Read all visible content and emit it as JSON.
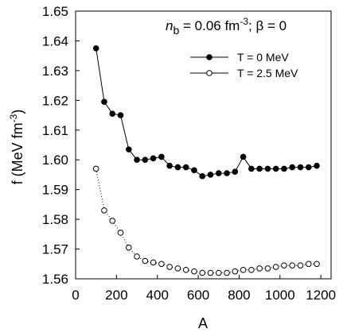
{
  "chart_data": {
    "type": "line",
    "title": "",
    "xlabel": "A",
    "ylabel": "f (MeV fm",
    "ylabel_sup": "-3",
    "ylabel_end": ")",
    "xlim": [
      0,
      1250
    ],
    "ylim": [
      1.56,
      1.65
    ],
    "x_ticks": [
      0,
      200,
      400,
      600,
      800,
      1000,
      1200
    ],
    "x_tick_labels": [
      "0",
      "200",
      "400",
      "600",
      "800",
      "1000",
      "1200"
    ],
    "y_ticks": [
      1.56,
      1.57,
      1.58,
      1.59,
      1.6,
      1.61,
      1.62,
      1.63,
      1.64,
      1.65
    ],
    "y_tick_labels": [
      "1.56",
      "1.57",
      "1.58",
      "1.59",
      "1.60",
      "1.61",
      "1.62",
      "1.63",
      "1.64",
      "1.65"
    ],
    "grid": false,
    "legend_position": "top-right",
    "annotation": {
      "n": "n",
      "n_sub": "b",
      "eq": " = 0.06 fm",
      "sup": "-3",
      "rest": "; β = 0"
    },
    "series": [
      {
        "name": "T = 0 MeV",
        "marker": "filled-circle",
        "line": "solid",
        "x": [
          100,
          140,
          180,
          220,
          260,
          300,
          340,
          380,
          420,
          460,
          500,
          540,
          580,
          620,
          660,
          700,
          740,
          780,
          820,
          860,
          900,
          940,
          980,
          1020,
          1060,
          1100,
          1140,
          1180
        ],
        "y": [
          1.6375,
          1.6195,
          1.6155,
          1.615,
          1.6035,
          1.6,
          1.6,
          1.6005,
          1.601,
          1.598,
          1.5975,
          1.5975,
          1.5965,
          1.5945,
          1.595,
          1.5955,
          1.5955,
          1.596,
          1.601,
          1.597,
          1.597,
          1.597,
          1.597,
          1.597,
          1.5975,
          1.5975,
          1.5975,
          1.598
        ]
      },
      {
        "name": "T = 2.5 MeV",
        "marker": "open-circle",
        "line": "dotted",
        "x": [
          100,
          140,
          180,
          220,
          260,
          300,
          340,
          380,
          420,
          460,
          500,
          540,
          580,
          620,
          660,
          700,
          740,
          780,
          820,
          860,
          900,
          940,
          980,
          1020,
          1060,
          1100,
          1140,
          1180
        ],
        "y": [
          1.597,
          1.583,
          1.5795,
          1.5755,
          1.5705,
          1.5675,
          1.566,
          1.5655,
          1.565,
          1.564,
          1.5635,
          1.563,
          1.5625,
          1.562,
          1.562,
          1.562,
          1.562,
          1.5625,
          1.563,
          1.563,
          1.5635,
          1.5635,
          1.564,
          1.5645,
          1.5645,
          1.5645,
          1.565,
          1.565
        ]
      }
    ]
  }
}
